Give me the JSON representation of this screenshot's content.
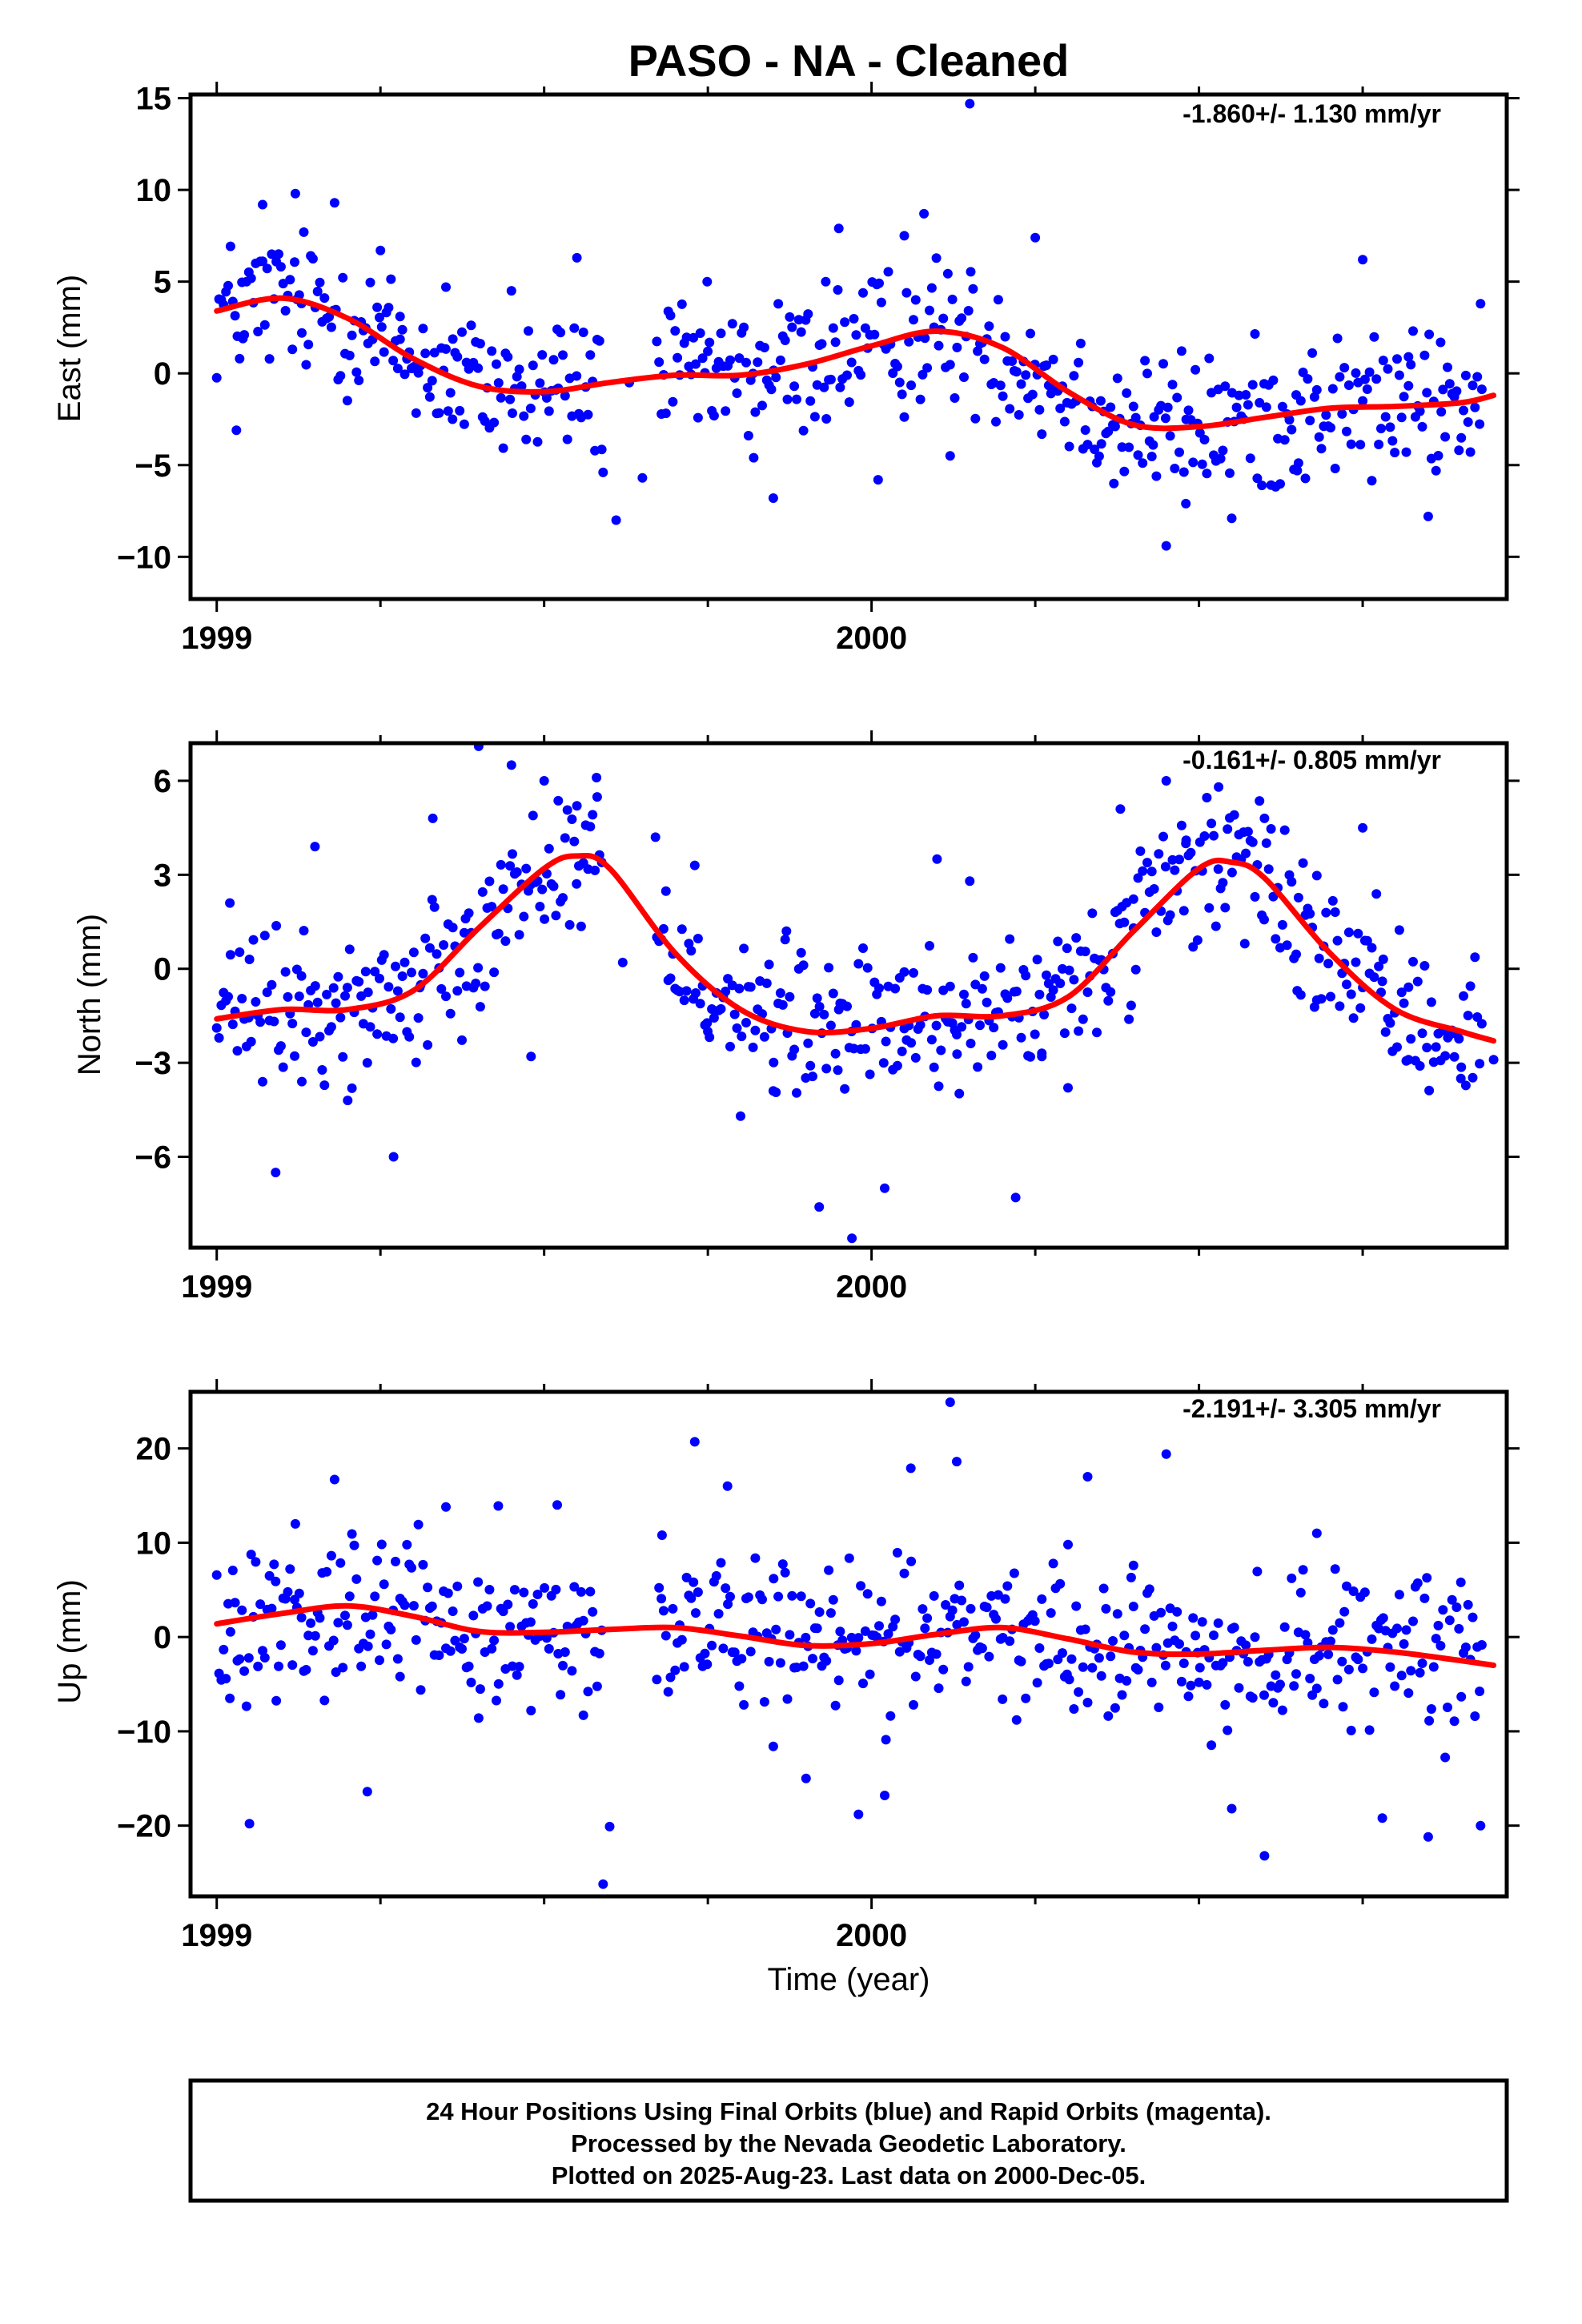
{
  "title": "PASO  - NA - Cleaned",
  "xlabel": "Time (year)",
  "footer": {
    "line1": "24 Hour Positions Using Final Orbits (blue) and Rapid Orbits (magenta).",
    "line2": "Processed by the Nevada Geodetic Laboratory.",
    "line3": "Plotted on 2025-Aug-23. Last data on 2000-Dec-05."
  },
  "colors": {
    "points": "#0000ff",
    "fit": "#ff0000",
    "axes": "#000000"
  },
  "chart_data": [
    {
      "type": "scatter",
      "panel": "east",
      "ylabel": "East (mm)",
      "rate_text": "-1.860+/- 1.130 mm/yr",
      "xlim": [
        1998.96,
        2000.97
      ],
      "ylim": [
        -12.3,
        15.2
      ],
      "x_ticks": [
        1999,
        2000
      ],
      "y_ticks": [
        -10,
        -5,
        0,
        5,
        10,
        15
      ],
      "fit": {
        "x": [
          1999.0,
          1999.1,
          1999.2,
          1999.3,
          1999.4,
          1999.5,
          1999.6,
          1999.7,
          1999.8,
          1999.9,
          2000.0,
          2000.1,
          2000.2,
          2000.3,
          2000.4,
          2000.5,
          2000.6,
          2000.7,
          2000.8,
          2000.9,
          2000.95
        ],
        "y": [
          3.4,
          4.1,
          3.0,
          0.8,
          -0.7,
          -1.0,
          -0.5,
          -0.1,
          -0.1,
          0.5,
          1.5,
          2.3,
          1.4,
          -1.0,
          -2.8,
          -2.9,
          -2.4,
          -1.9,
          -1.8,
          -1.6,
          -1.2
        ]
      },
      "points": {
        "x": [
          1999.03,
          1999.07,
          1999.12,
          1999.18,
          1999.25,
          1999.35,
          1999.45,
          1999.55,
          1999.65,
          1999.75,
          1999.85,
          1999.95,
          2000.05,
          2000.15,
          2000.25,
          2000.35,
          2000.45,
          2000.55,
          2000.65,
          2000.75,
          2000.85,
          2000.93,
          1999.04,
          1999.36,
          1999.59,
          1999.61,
          1999.63,
          2000.08,
          2000.12,
          2000.37,
          2000.48,
          2000.87,
          1999.13,
          1999.28,
          1999.52,
          1999.82,
          1999.93,
          2000.01,
          2000.43,
          2000.82
        ],
        "y": [
          -3.1,
          9.2,
          9.8,
          9.3,
          6.7,
          4.7,
          4.5,
          6.3,
          -5.7,
          1.2,
          -6.8,
          7.9,
          7.5,
          14.7,
          7.4,
          -1.5,
          -9.4,
          -7.9,
          -5.3,
          6.2,
          -7.8,
          3.8,
          1.9,
          -2.5,
          -5.4,
          -8.0,
          -0.5,
          8.7,
          -4.5,
          -6.0,
          -7.1,
          -2.1,
          2.2,
          3.1,
          2.4,
          -4.6,
          5.0,
          -5.8,
          -3.9,
          0.9
        ]
      }
    },
    {
      "type": "scatter",
      "panel": "north",
      "ylabel": "North (mm)",
      "rate_text": "-0.161+/- 0.805 mm/yr",
      "xlim": [
        1998.96,
        2000.97
      ],
      "ylim": [
        -8.9,
        7.2
      ],
      "x_ticks": [
        1999,
        2000
      ],
      "y_ticks": [
        -6,
        -3,
        0,
        3,
        6
      ],
      "fit": {
        "x": [
          1999.0,
          1999.1,
          1999.2,
          1999.3,
          1999.4,
          1999.5,
          1999.55,
          1999.6,
          1999.7,
          1999.8,
          1999.9,
          2000.0,
          2000.1,
          2000.2,
          2000.3,
          2000.4,
          2000.5,
          2000.55,
          2000.6,
          2000.7,
          2000.8,
          2000.9,
          2000.95
        ],
        "y": [
          -1.6,
          -1.3,
          -1.3,
          -0.7,
          1.3,
          3.2,
          3.6,
          3.2,
          0.5,
          -1.3,
          -2.0,
          -1.9,
          -1.5,
          -1.5,
          -0.9,
          1.2,
          3.2,
          3.4,
          2.9,
          0.5,
          -1.3,
          -2.0,
          -2.3
        ]
      },
      "points": {
        "x": [
          1999.02,
          1999.09,
          1999.15,
          1999.2,
          1999.27,
          1999.33,
          1999.4,
          1999.45,
          1999.5,
          1999.58,
          1999.67,
          1999.73,
          1999.8,
          1999.87,
          1999.92,
          1999.97,
          2000.02,
          2000.1,
          2000.15,
          2000.22,
          2000.3,
          2000.38,
          2000.45,
          2000.53,
          2000.6,
          2000.68,
          2000.75,
          2000.82,
          2000.9,
          2000.95,
          1999.05,
          1999.13,
          1999.23,
          1999.31,
          1999.38,
          1999.48,
          1999.55,
          1999.62,
          1999.75,
          1999.85,
          1999.95,
          2000.05,
          2000.13,
          2000.26,
          2000.4,
          2000.48,
          2000.57,
          2000.65,
          2000.78,
          2000.88
        ],
        "y": [
          2.1,
          -6.5,
          3.9,
          -4.2,
          -6.0,
          4.8,
          7.1,
          6.5,
          6.0,
          6.1,
          4.2,
          3.3,
          -4.7,
          1.2,
          -7.6,
          -8.6,
          -7.0,
          3.5,
          2.8,
          -7.3,
          -3.8,
          5.1,
          6.0,
          5.8,
          4.8,
          -1.0,
          4.5,
          -2.9,
          -3.5,
          -2.9,
          0.3,
          -3.6,
          -3.0,
          -0.6,
          1.6,
          -2.8,
          5.2,
          0.2,
          -2.0,
          -3.9,
          -1.3,
          -0.1,
          -2.1,
          -2.8,
          1.3,
          4.0,
          0.8,
          -0.7,
          -0.4,
          -2.2
        ]
      }
    },
    {
      "type": "scatter",
      "panel": "up",
      "ylabel": "Up (mm)",
      "rate_text": "-2.191+/- 3.305 mm/yr",
      "xlim": [
        1998.96,
        2000.97
      ],
      "ylim": [
        -27.5,
        26.0
      ],
      "x_ticks": [
        1999,
        2000
      ],
      "y_ticks": [
        -20,
        -10,
        0,
        10,
        20
      ],
      "fit": {
        "x": [
          1999.0,
          1999.1,
          1999.2,
          1999.3,
          1999.4,
          1999.5,
          1999.6,
          1999.7,
          1999.8,
          1999.9,
          2000.0,
          2000.1,
          2000.2,
          2000.3,
          2000.4,
          2000.5,
          2000.6,
          2000.7,
          2000.8,
          2000.9,
          2000.95
        ],
        "y": [
          1.4,
          2.5,
          3.3,
          2.2,
          0.6,
          0.5,
          0.8,
          1.0,
          0.1,
          -0.9,
          -0.7,
          0.3,
          1.0,
          -0.2,
          -1.6,
          -1.8,
          -1.4,
          -1.1,
          -1.6,
          -2.5,
          -3.0
        ]
      },
      "points": {
        "x": [
          1999.05,
          1999.12,
          1999.18,
          1999.23,
          1999.35,
          1999.43,
          1999.52,
          1999.59,
          1999.6,
          1999.73,
          1999.78,
          1999.9,
          1999.98,
          2000.02,
          2000.06,
          2000.12,
          2000.13,
          2000.33,
          2000.45,
          2000.55,
          2000.6,
          2000.68,
          2000.78,
          2000.85,
          2000.93,
          1999.02,
          1999.09,
          1999.28,
          1999.4,
          1999.48,
          1999.56,
          1999.68,
          1999.85,
          1999.95,
          2000.2,
          2000.3,
          2000.4,
          2000.5,
          2000.72,
          2000.9
        ],
        "y": [
          -19.8,
          12.0,
          16.7,
          -16.4,
          13.8,
          13.9,
          14.0,
          -26.2,
          -20.1,
          20.7,
          16.0,
          -15.0,
          -18.8,
          -16.8,
          17.9,
          24.9,
          18.6,
          17.0,
          19.4,
          -18.2,
          -23.2,
          11.0,
          -19.2,
          -21.2,
          -20.0,
          -6.5,
          5.9,
          -4.2,
          -8.6,
          -7.8,
          -8.3,
          10.8,
          -11.6,
          -4.6,
          -6.6,
          9.8,
          7.6,
          -4.8,
          -7.4,
          5.8
        ]
      }
    }
  ]
}
